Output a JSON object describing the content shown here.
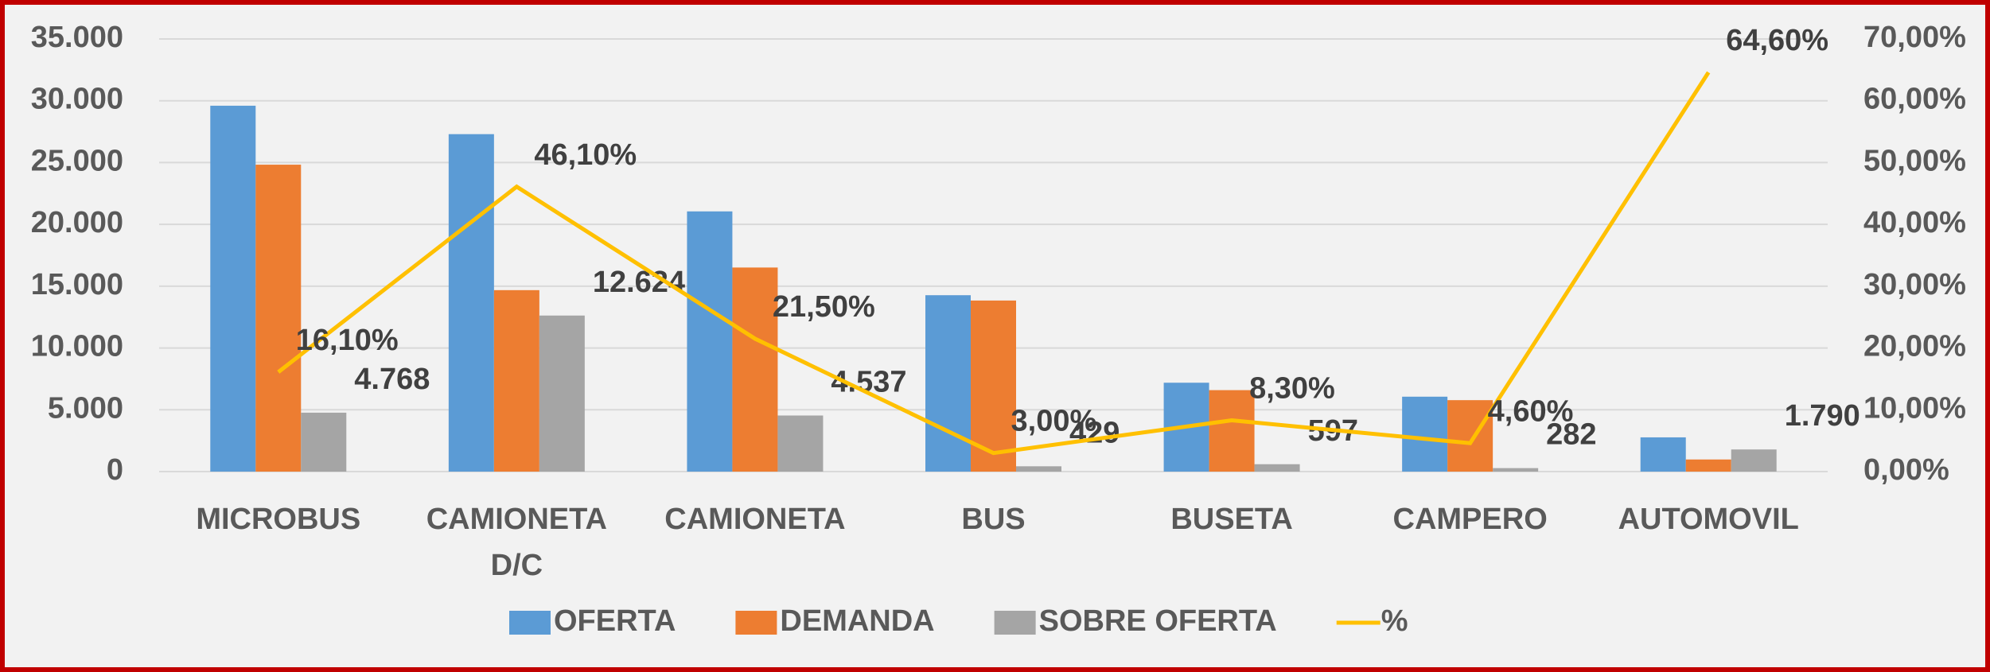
{
  "chart_data": {
    "type": "bar",
    "categories": [
      "MICROBUS",
      "CAMIONETA D/C",
      "CAMIONETA",
      "BUS",
      "BUSETA",
      "CAMPERO",
      "AUTOMOVIL"
    ],
    "series": [
      {
        "name": "OFERTA",
        "color": "#5b9bd5",
        "values": [
          29600,
          27300,
          21050,
          14270,
          7190,
          6060,
          2770
        ]
      },
      {
        "name": "DEMANDA",
        "color": "#ed7d31",
        "values": [
          24830,
          14680,
          16510,
          13840,
          6590,
          5780,
          980
        ]
      },
      {
        "name": "SOBRE OFERTA",
        "color": "#a5a5a5",
        "values": [
          4768,
          12624,
          4537,
          429,
          597,
          282,
          1790
        ],
        "value_labels": [
          "4.768",
          "12.624",
          "4.537",
          "429",
          "597",
          "282",
          "1.790"
        ]
      },
      {
        "name": "%",
        "color": "#ffc000",
        "type": "line",
        "axis": "y2",
        "values": [
          16.1,
          46.1,
          21.5,
          3.0,
          8.3,
          4.6,
          64.6
        ],
        "value_labels": [
          "16,10%",
          "46,10%",
          "21,50%",
          "3,00%",
          "8,30%",
          "4,60%",
          "64,60%"
        ]
      }
    ],
    "ylim": [
      0,
      35000
    ],
    "yticks": [
      0,
      {
        "value": 5000,
        "label": "5.000"
      },
      {
        "value": 10000,
        "label": "10.000"
      },
      {
        "value": 15000,
        "label": "15.000"
      },
      {
        "value": 20000,
        "label": "20.000"
      },
      {
        "value": 25000,
        "label": "25.000"
      },
      {
        "value": 30000,
        "label": "30.000"
      },
      {
        "value": 35000,
        "label": "35.000"
      }
    ],
    "y2lim": [
      0,
      70
    ],
    "y2ticks": [
      {
        "value": 0,
        "label": "0,00%"
      },
      {
        "value": 10,
        "label": "10,00%"
      },
      {
        "value": 20,
        "label": "20,00%"
      },
      {
        "value": 30,
        "label": "30,00%"
      },
      {
        "value": 40,
        "label": "40,00%"
      },
      {
        "value": 50,
        "label": "50,00%"
      },
      {
        "value": 60,
        "label": "60,00%"
      },
      {
        "value": 70,
        "label": "70,00%"
      }
    ],
    "grid": true,
    "legend": "bottom"
  }
}
